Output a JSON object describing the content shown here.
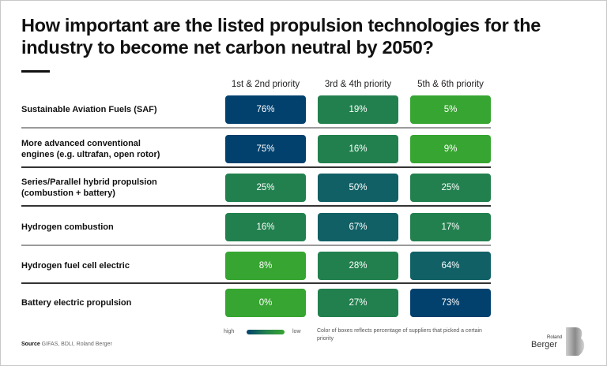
{
  "title": "How important are the listed propulsion technologies for the industry to become net carbon neutral by 2050?",
  "colors": {
    "navy": "#02416E",
    "teal": "#116065",
    "green": "#22804E",
    "bright_green": "#37A531"
  },
  "chart_data": {
    "type": "table",
    "title": "How important are the listed propulsion technologies for the industry to become net carbon neutral by 2050?",
    "columns": [
      "1st & 2nd priority",
      "3rd & 4th priority",
      "5th & 6th priority"
    ],
    "rows": [
      {
        "label": "Sustainable Aviation Fuels (SAF)",
        "values": [
          "76%",
          "19%",
          "5%"
        ],
        "colors": [
          "#02416E",
          "#22804E",
          "#37A531"
        ]
      },
      {
        "label": "More advanced conventional engines (e.g. ultrafan, open rotor)",
        "values": [
          "75%",
          "16%",
          "9%"
        ],
        "colors": [
          "#02416E",
          "#22804E",
          "#37A531"
        ]
      },
      {
        "label": "Series/Parallel hybrid propulsion (combustion + battery)",
        "values": [
          "25%",
          "50%",
          "25%"
        ],
        "colors": [
          "#22804E",
          "#116065",
          "#22804E"
        ]
      },
      {
        "label": "Hydrogen combustion",
        "values": [
          "16%",
          "67%",
          "17%"
        ],
        "colors": [
          "#22804E",
          "#116065",
          "#22804E"
        ]
      },
      {
        "label": "Hydrogen fuel cell electric",
        "values": [
          "8%",
          "28%",
          "64%"
        ],
        "colors": [
          "#37A531",
          "#22804E",
          "#116065"
        ]
      },
      {
        "label": "Battery electric propulsion",
        "values": [
          "0%",
          "27%",
          "73%"
        ],
        "colors": [
          "#37A531",
          "#22804E",
          "#02416E"
        ]
      }
    ],
    "legend": {
      "high": "high",
      "low": "low",
      "note": "Color of boxes reflects percentage of suppliers that picked a certain priority"
    }
  },
  "row_labels_display": [
    [
      "Sustainable Aviation Fuels (SAF)"
    ],
    [
      "More advanced conventional",
      "engines (e.g. ultrafan, open rotor)"
    ],
    [
      "Series/Parallel hybrid propulsion",
      "(combustion + battery)"
    ],
    [
      "Hydrogen combustion"
    ],
    [
      "Hydrogen fuel cell electric"
    ],
    [
      "Battery electric propulsion"
    ]
  ],
  "dividers": [
    "gray",
    "dark",
    "dark",
    "gray",
    "dark"
  ],
  "source": {
    "label": "Source",
    "text": " GIFAS, BDLI, Roland Berger"
  },
  "logo": {
    "small": "Roland",
    "big": "Berger"
  }
}
